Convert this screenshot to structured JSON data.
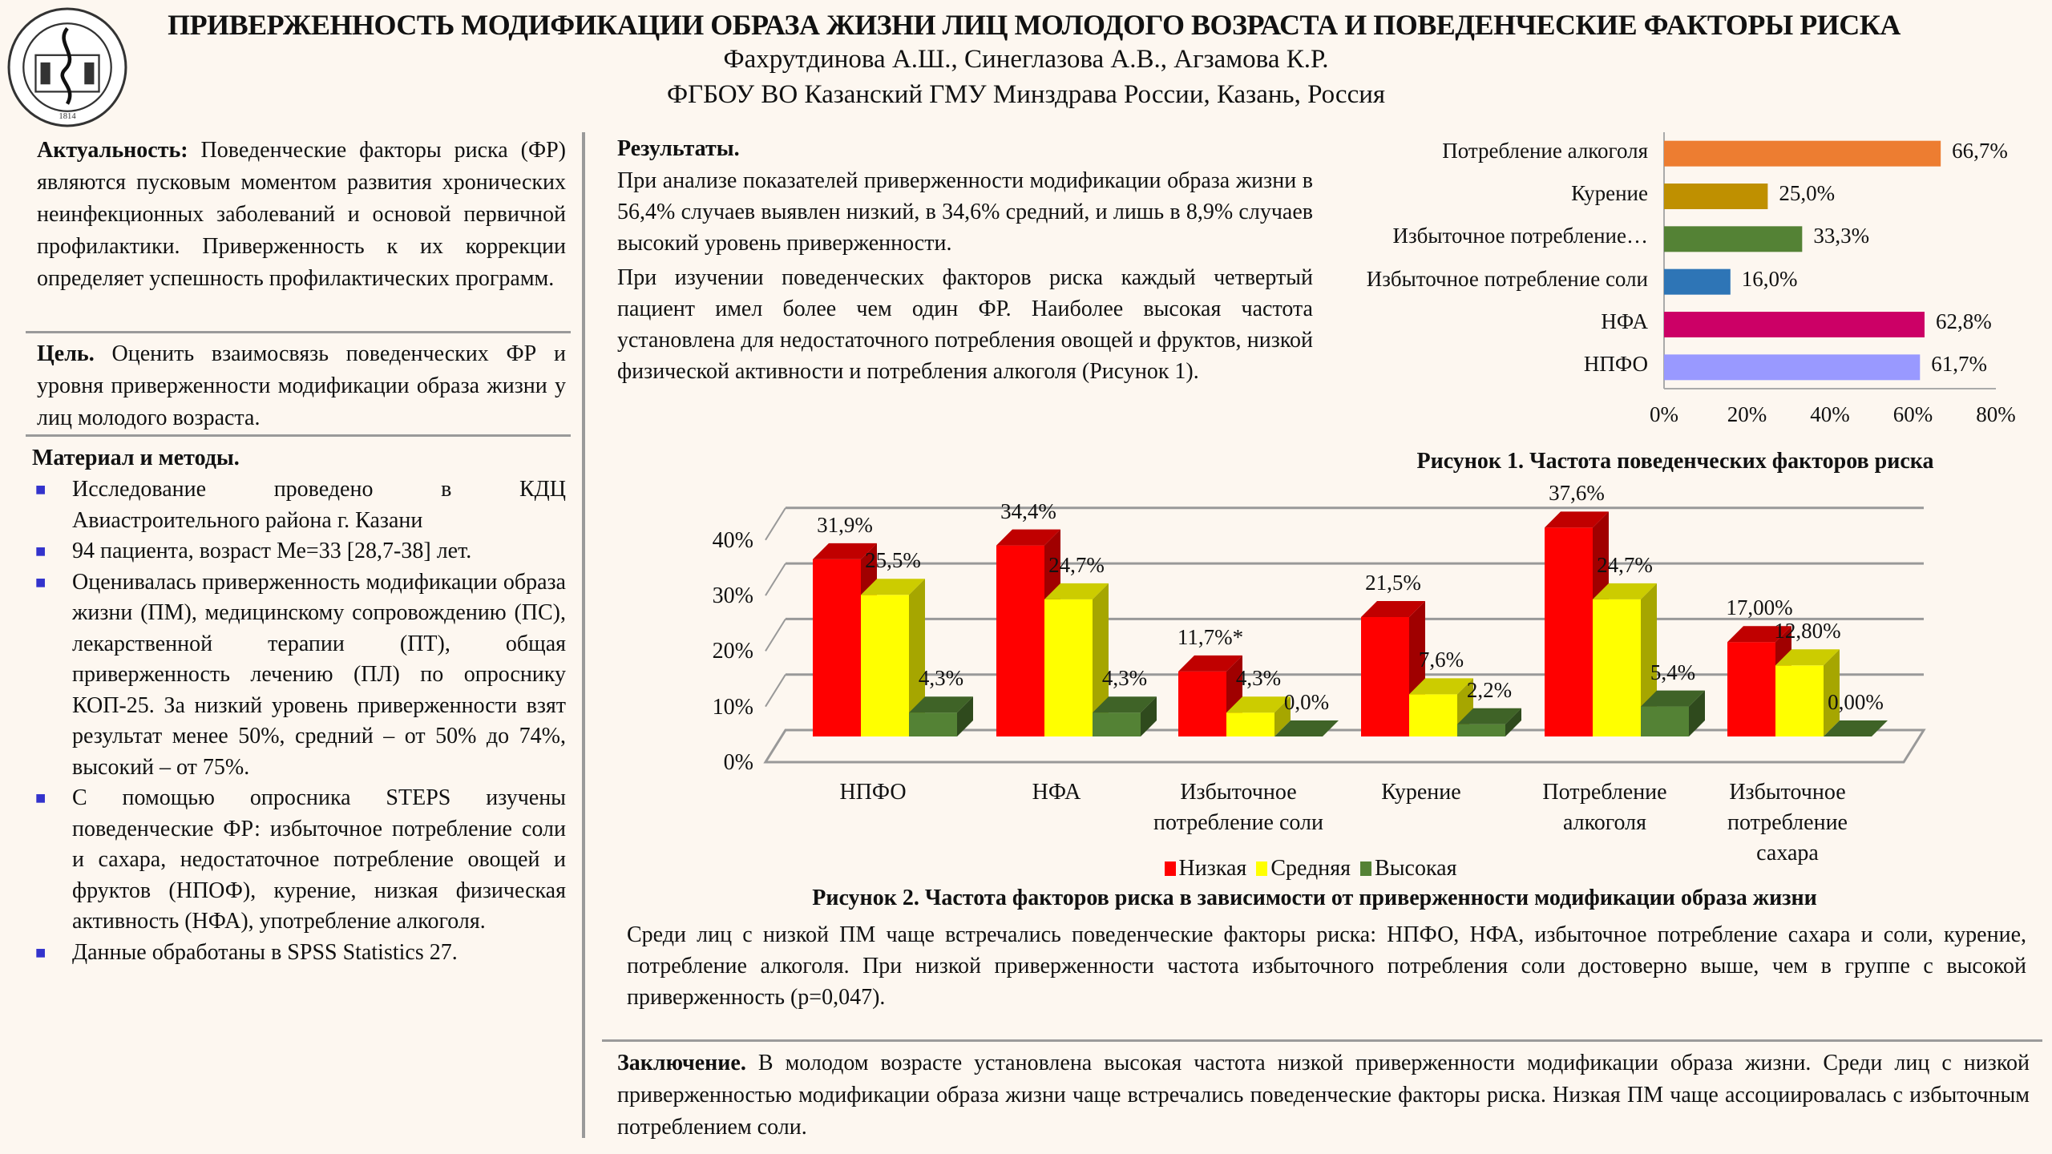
{
  "header": {
    "title": "ПРИВЕРЖЕННОСТЬ МОДИФИКАЦИИ ОБРАЗА ЖИЗНИ ЛИЦ МОЛОДОГО ВОЗРАСТА И ПОВЕДЕНЧЕСКИЕ ФАКТОРЫ РИСКА",
    "authors": "Фахрутдинова А.Ш., Синеглазова А.В.,  Агзамова К.Р.",
    "affiliation": "ФГБОУ ВО Казанский ГМУ Минздрава России, Казань, Россия",
    "logo_text": "КАЗАНСКИЙ ГОСУДАРСТВЕННЫЙ МЕДИЦИНСКИЙ УНИВЕРСИТЕТ 1814"
  },
  "left": {
    "actuality": {
      "label": "Актуальность:",
      "text": " Поведенческие факторы риска (ФР) являются пусковым моментом развития хронических неинфекционных заболеваний и основой первичной профилактики. Приверженность к их коррекции определяет успешность профилактических программ."
    },
    "goal": {
      "label": "Цель.",
      "text": " Оценить взаимосвязь поведенческих ФР и уровня приверженности модификации образа жизни у лиц молодого возраста."
    },
    "methods": {
      "title": "Материал и методы.",
      "items": [
        "Исследование проведено в КДЦ Авиастроительного района г. Казани",
        "94 пациента, возраст Ме=33 [28,7-38] лет.",
        "Оценивалась приверженность модификации образа жизни (ПМ), медицинскому сопровождению (ПС), лекарственной терапии (ПТ), общая приверженность лечению (ПЛ) по опроснику КОП-25. За низкий уровень приверженности взят результат менее 50%, средний – от 50% до 74%, высокий – от 75%.",
        "С помощью опросника STEPS изучены поведенческие ФР: избыточное потребление соли и сахара, недостаточное потребление овощей и фруктов (НПОФ), курение, низкая физическая активность (НФА), употребление алкоголя.",
        "Данные обработаны в SPSS Statistics 27."
      ]
    }
  },
  "results": {
    "title": "Результаты.",
    "paragraphs": [
      "При анализе показателей приверженности модификации образа жизни в 56,4% случаев выявлен низкий, в 34,6% средний, и лишь в 8,9% случаев высокий уровень приверженности.",
      "При изучении поведенческих факторов риска каждый четвертый пациент имел более чем один ФР. Наиболее высокая частота установлена для недостаточного потребления овощей и фруктов, низкой физической активности и потребления алкоголя (Рисунок 1)."
    ],
    "summary": "Среди лиц с низкой ПМ чаще встречались поведенческие факторы риска: НПФО, НФА, избыточное потребление сахара и соли, курение, потребление алкоголя. При низкой приверженности частота избыточного потребления соли достоверно выше, чем в группе с высокой приверженность (р=0,047)."
  },
  "conclusion": {
    "label": "Заключение.",
    "text": " В молодом возрасте установлена высокая частота низкой приверженности модификации образа жизни. Среди лиц с низкой приверженностью модификации образа жизни чаще встречались поведенческие факторы риска. Низкая ПМ чаще ассоциировалась с избыточным потреблением соли."
  },
  "chart_data": [
    {
      "type": "bar",
      "orientation": "horizontal",
      "title": "Рисунок 1. Частота поведенческих факторов риска",
      "categories": [
        "Потребление алкоголя",
        "Курение",
        "Избыточное потребление…",
        "Избыточное потребление соли",
        "НФА",
        "НПФО"
      ],
      "values": [
        66.7,
        25.0,
        33.3,
        16.0,
        62.8,
        61.7
      ],
      "value_labels": [
        "66,7%",
        "25,0%",
        "33,3%",
        "16,0%",
        "62,8%",
        "61,7%"
      ],
      "colors": [
        "#ED7D31",
        "#BF9000",
        "#548235",
        "#2E75B6",
        "#CC0066",
        "#9999FF"
      ],
      "xlim": [
        0,
        80
      ],
      "xticks": [
        "0%",
        "20%",
        "40%",
        "60%",
        "80%"
      ],
      "xlabel": "",
      "ylabel": ""
    },
    {
      "type": "bar",
      "title": "Рисунок 2. Частота факторов риска в зависимости от приверженности модификации образа жизни",
      "categories": [
        "НПФО",
        "НФА",
        "Избыточное потребление соли",
        "Курение",
        "Потребление алкоголя",
        "Избыточное потребление сахара"
      ],
      "series": [
        {
          "name": "Низкая",
          "color": "#FF0000",
          "values": [
            31.9,
            34.4,
            11.7,
            21.5,
            37.6,
            17.0
          ],
          "labels": [
            "31,9%",
            "34,4%",
            "11,7%*",
            "21,5%",
            "37,6%",
            "17,00%"
          ]
        },
        {
          "name": "Средняя",
          "color": "#FFFF00",
          "values": [
            25.5,
            24.7,
            4.3,
            7.6,
            24.7,
            12.8
          ],
          "labels": [
            "25,5%",
            "24,7%",
            "4,3%",
            "7,6%",
            "24,7%",
            "12,80%"
          ]
        },
        {
          "name": "Высокая",
          "color": "#548235",
          "values": [
            4.3,
            4.3,
            0.0,
            2.2,
            5.4,
            0.0
          ],
          "labels": [
            "4,3%",
            "4,3%",
            "0,0%",
            "2,2%",
            "5,4%",
            "0,00%"
          ]
        }
      ],
      "ylim": [
        0,
        40
      ],
      "yticks": [
        "0%",
        "10%",
        "20%",
        "30%",
        "40%"
      ],
      "legend": "bottom",
      "xlabel": "",
      "ylabel": ""
    }
  ]
}
